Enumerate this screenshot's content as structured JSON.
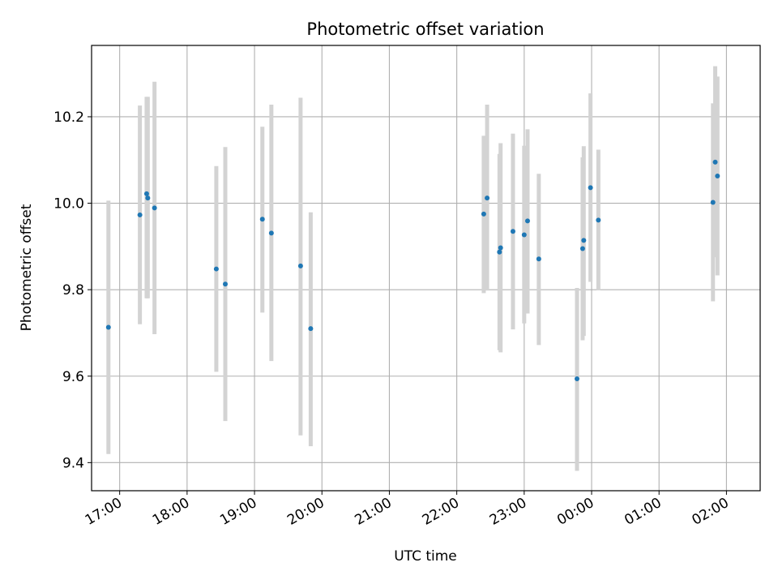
{
  "chart_data": {
    "type": "scatter",
    "title": "Photometric offset variation",
    "xlabel": "UTC time",
    "ylabel": "Photometric offset",
    "x_unit": "hours (UTC, clock time; values past 24 wrap to next day)",
    "xlim": [
      "16:35",
      "02:30"
    ],
    "ylim": [
      9.335,
      10.365
    ],
    "x_ticks": [
      "17:00",
      "18:00",
      "19:00",
      "20:00",
      "21:00",
      "22:00",
      "23:00",
      "00:00",
      "01:00",
      "02:00"
    ],
    "y_ticks": [
      "9.4",
      "9.6",
      "9.8",
      "10.0",
      "10.2"
    ],
    "grid": true,
    "marker_color": "#1f77b4",
    "errorbar_color": "#d3d3d3",
    "points": [
      {
        "time": "16:50",
        "y": 9.713,
        "ylow": 9.42,
        "yhigh": 10.006
      },
      {
        "time": "17:18",
        "y": 9.973,
        "ylow": 9.72,
        "yhigh": 10.226
      },
      {
        "time": "17:24",
        "y": 10.022,
        "ylow": 9.78,
        "yhigh": 10.246
      },
      {
        "time": "17:25",
        "y": 10.012,
        "ylow": 9.78,
        "yhigh": 10.246
      },
      {
        "time": "17:31",
        "y": 9.989,
        "ylow": 9.697,
        "yhigh": 10.281
      },
      {
        "time": "18:26",
        "y": 9.848,
        "ylow": 9.61,
        "yhigh": 10.086
      },
      {
        "time": "18:34",
        "y": 9.813,
        "ylow": 9.496,
        "yhigh": 10.13
      },
      {
        "time": "19:07",
        "y": 9.963,
        "ylow": 9.747,
        "yhigh": 10.177
      },
      {
        "time": "19:15",
        "y": 9.931,
        "ylow": 9.635,
        "yhigh": 10.228
      },
      {
        "time": "19:41",
        "y": 9.855,
        "ylow": 9.463,
        "yhigh": 10.244
      },
      {
        "time": "19:50",
        "y": 9.71,
        "ylow": 9.438,
        "yhigh": 9.979
      },
      {
        "time": "22:24",
        "y": 9.975,
        "ylow": 9.792,
        "yhigh": 10.156
      },
      {
        "time": "22:27",
        "y": 10.012,
        "ylow": 9.798,
        "yhigh": 10.228
      },
      {
        "time": "22:38",
        "y": 9.887,
        "ylow": 9.66,
        "yhigh": 10.114
      },
      {
        "time": "22:39",
        "y": 9.897,
        "ylow": 9.655,
        "yhigh": 10.139
      },
      {
        "time": "22:50",
        "y": 9.935,
        "ylow": 9.708,
        "yhigh": 10.161
      },
      {
        "time": "23:00",
        "y": 9.927,
        "ylow": 9.722,
        "yhigh": 10.133
      },
      {
        "time": "23:03",
        "y": 9.959,
        "ylow": 9.745,
        "yhigh": 10.171
      },
      {
        "time": "23:13",
        "y": 9.871,
        "ylow": 9.672,
        "yhigh": 10.068
      },
      {
        "time": "23:47",
        "y": 9.594,
        "ylow": 9.381,
        "yhigh": 9.804
      },
      {
        "time": "23:52",
        "y": 9.895,
        "ylow": 9.683,
        "yhigh": 10.106
      },
      {
        "time": "23:53",
        "y": 9.914,
        "ylow": 9.693,
        "yhigh": 10.132
      },
      {
        "time": "23:59",
        "y": 10.036,
        "ylow": 9.818,
        "yhigh": 10.254
      },
      {
        "time": "00:06",
        "y": 9.961,
        "ylow": 9.799,
        "yhigh": 10.124
      },
      {
        "time": "01:48",
        "y": 10.002,
        "ylow": 9.773,
        "yhigh": 10.231
      },
      {
        "time": "01:50",
        "y": 10.095,
        "ylow": 9.875,
        "yhigh": 10.317
      },
      {
        "time": "01:52",
        "y": 10.063,
        "ylow": 9.833,
        "yhigh": 10.293
      }
    ]
  }
}
